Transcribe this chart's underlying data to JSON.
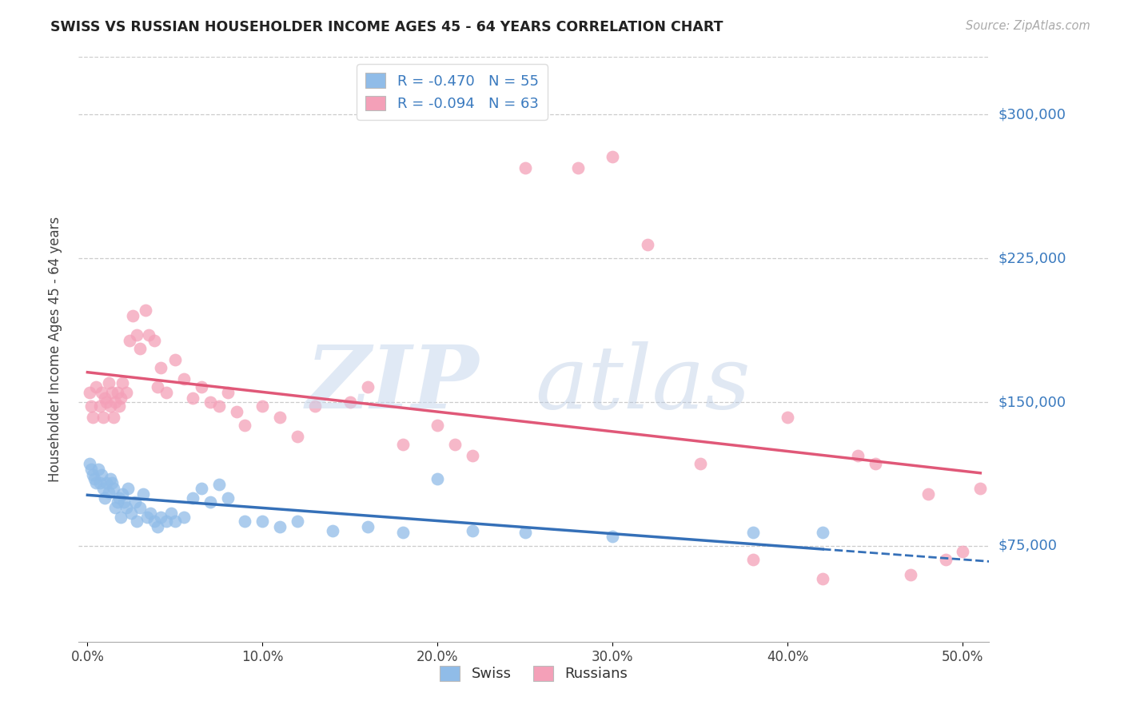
{
  "title": "SWISS VS RUSSIAN HOUSEHOLDER INCOME AGES 45 - 64 YEARS CORRELATION CHART",
  "source": "Source: ZipAtlas.com",
  "ylabel": "Householder Income Ages 45 - 64 years",
  "xlabel_ticks": [
    "0.0%",
    "10.0%",
    "20.0%",
    "30.0%",
    "40.0%",
    "50.0%"
  ],
  "xlabel_vals": [
    0.0,
    0.1,
    0.2,
    0.3,
    0.4,
    0.5
  ],
  "ytick_labels": [
    "$75,000",
    "$150,000",
    "$225,000",
    "$300,000"
  ],
  "ytick_vals": [
    75000,
    150000,
    225000,
    300000
  ],
  "ylim": [
    25000,
    330000
  ],
  "xlim": [
    -0.005,
    0.515
  ],
  "swiss_color": "#90bce8",
  "russian_color": "#f4a0b8",
  "swiss_line_color": "#3570b8",
  "russian_line_color": "#e05878",
  "swiss_x": [
    0.001,
    0.002,
    0.003,
    0.004,
    0.005,
    0.006,
    0.007,
    0.008,
    0.009,
    0.01,
    0.011,
    0.012,
    0.013,
    0.014,
    0.015,
    0.016,
    0.017,
    0.018,
    0.019,
    0.02,
    0.021,
    0.022,
    0.023,
    0.025,
    0.027,
    0.028,
    0.03,
    0.032,
    0.034,
    0.036,
    0.038,
    0.04,
    0.042,
    0.045,
    0.048,
    0.05,
    0.055,
    0.06,
    0.065,
    0.07,
    0.075,
    0.08,
    0.09,
    0.1,
    0.11,
    0.12,
    0.14,
    0.16,
    0.18,
    0.2,
    0.22,
    0.25,
    0.3,
    0.38,
    0.42
  ],
  "swiss_y": [
    118000,
    115000,
    112000,
    110000,
    108000,
    115000,
    108000,
    112000,
    105000,
    100000,
    108000,
    103000,
    110000,
    108000,
    105000,
    95000,
    98000,
    100000,
    90000,
    102000,
    98000,
    95000,
    105000,
    92000,
    98000,
    88000,
    95000,
    102000,
    90000,
    92000,
    88000,
    85000,
    90000,
    88000,
    92000,
    88000,
    90000,
    100000,
    105000,
    98000,
    107000,
    100000,
    88000,
    88000,
    85000,
    88000,
    83000,
    85000,
    82000,
    110000,
    83000,
    82000,
    80000,
    82000,
    82000
  ],
  "russian_x": [
    0.001,
    0.002,
    0.003,
    0.005,
    0.007,
    0.008,
    0.009,
    0.01,
    0.011,
    0.012,
    0.013,
    0.014,
    0.015,
    0.016,
    0.017,
    0.018,
    0.019,
    0.02,
    0.022,
    0.024,
    0.026,
    0.028,
    0.03,
    0.033,
    0.035,
    0.038,
    0.04,
    0.042,
    0.045,
    0.05,
    0.055,
    0.06,
    0.065,
    0.07,
    0.075,
    0.08,
    0.085,
    0.09,
    0.1,
    0.11,
    0.12,
    0.13,
    0.15,
    0.16,
    0.18,
    0.2,
    0.21,
    0.22,
    0.25,
    0.28,
    0.3,
    0.32,
    0.35,
    0.38,
    0.4,
    0.42,
    0.44,
    0.45,
    0.47,
    0.48,
    0.49,
    0.5,
    0.51
  ],
  "russian_y": [
    155000,
    148000,
    142000,
    158000,
    148000,
    155000,
    142000,
    152000,
    150000,
    160000,
    148000,
    155000,
    142000,
    150000,
    155000,
    148000,
    152000,
    160000,
    155000,
    182000,
    195000,
    185000,
    178000,
    198000,
    185000,
    182000,
    158000,
    168000,
    155000,
    172000,
    162000,
    152000,
    158000,
    150000,
    148000,
    155000,
    145000,
    138000,
    148000,
    142000,
    132000,
    148000,
    150000,
    158000,
    128000,
    138000,
    128000,
    122000,
    272000,
    272000,
    278000,
    232000,
    118000,
    68000,
    142000,
    58000,
    122000,
    118000,
    60000,
    102000,
    68000,
    72000,
    105000
  ]
}
